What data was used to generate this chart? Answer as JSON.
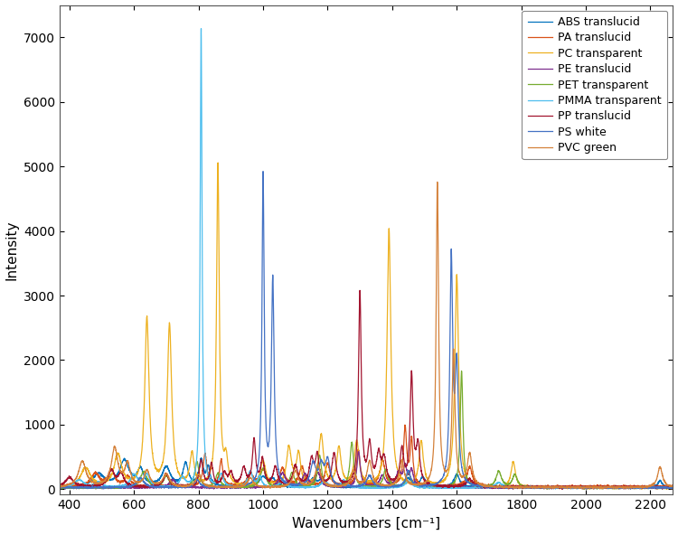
{
  "title": "",
  "xlabel": "Wavenumbers [cm⁻¹]",
  "ylabel": "Intensity",
  "xlim": [
    370,
    2270
  ],
  "ylim": [
    -80,
    7500
  ],
  "yticks": [
    0,
    1000,
    2000,
    3000,
    4000,
    5000,
    6000,
    7000
  ],
  "xticks": [
    400,
    600,
    800,
    1000,
    1200,
    1400,
    1600,
    1800,
    2000,
    2200
  ],
  "legend_entries": [
    {
      "label": "ABS translucid",
      "color": "#0072BD"
    },
    {
      "label": "PA translucid",
      "color": "#D95319"
    },
    {
      "label": "PC transparent",
      "color": "#EDB120"
    },
    {
      "label": "PE translucid",
      "color": "#7E2F8E"
    },
    {
      "label": "PET transparent",
      "color": "#77AC30"
    },
    {
      "label": "PMMA transparent",
      "color": "#4DBEEE"
    },
    {
      "label": "PP translucid",
      "color": "#A2142F"
    },
    {
      "label": "PS white",
      "color": "#4472C4"
    },
    {
      "label": "PVC green",
      "color": "#D4813A"
    }
  ],
  "background_color": "#FFFFFF",
  "grid": false
}
